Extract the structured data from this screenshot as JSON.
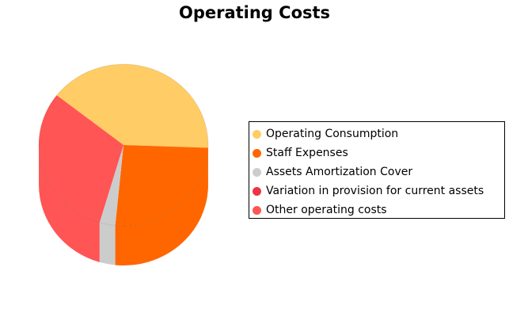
{
  "chart_data": {
    "type": "pie",
    "title": "Operating Costs",
    "style": "3d-cylinder",
    "legend_position": "right",
    "slices": [
      {
        "label": "Operating Consumption",
        "value": 40,
        "color": "#FFCC66"
      },
      {
        "label": "Staff Expenses",
        "value": 26,
        "color": "#FF6600"
      },
      {
        "label": "Assets Amortization Cover",
        "value": 3,
        "color": "#CCCCCC"
      },
      {
        "label": "Variation in provision for current assets",
        "value": 0,
        "color": "#EE3344"
      },
      {
        "label": "Other operating costs",
        "value": 31,
        "color": "#FF5555"
      }
    ]
  }
}
